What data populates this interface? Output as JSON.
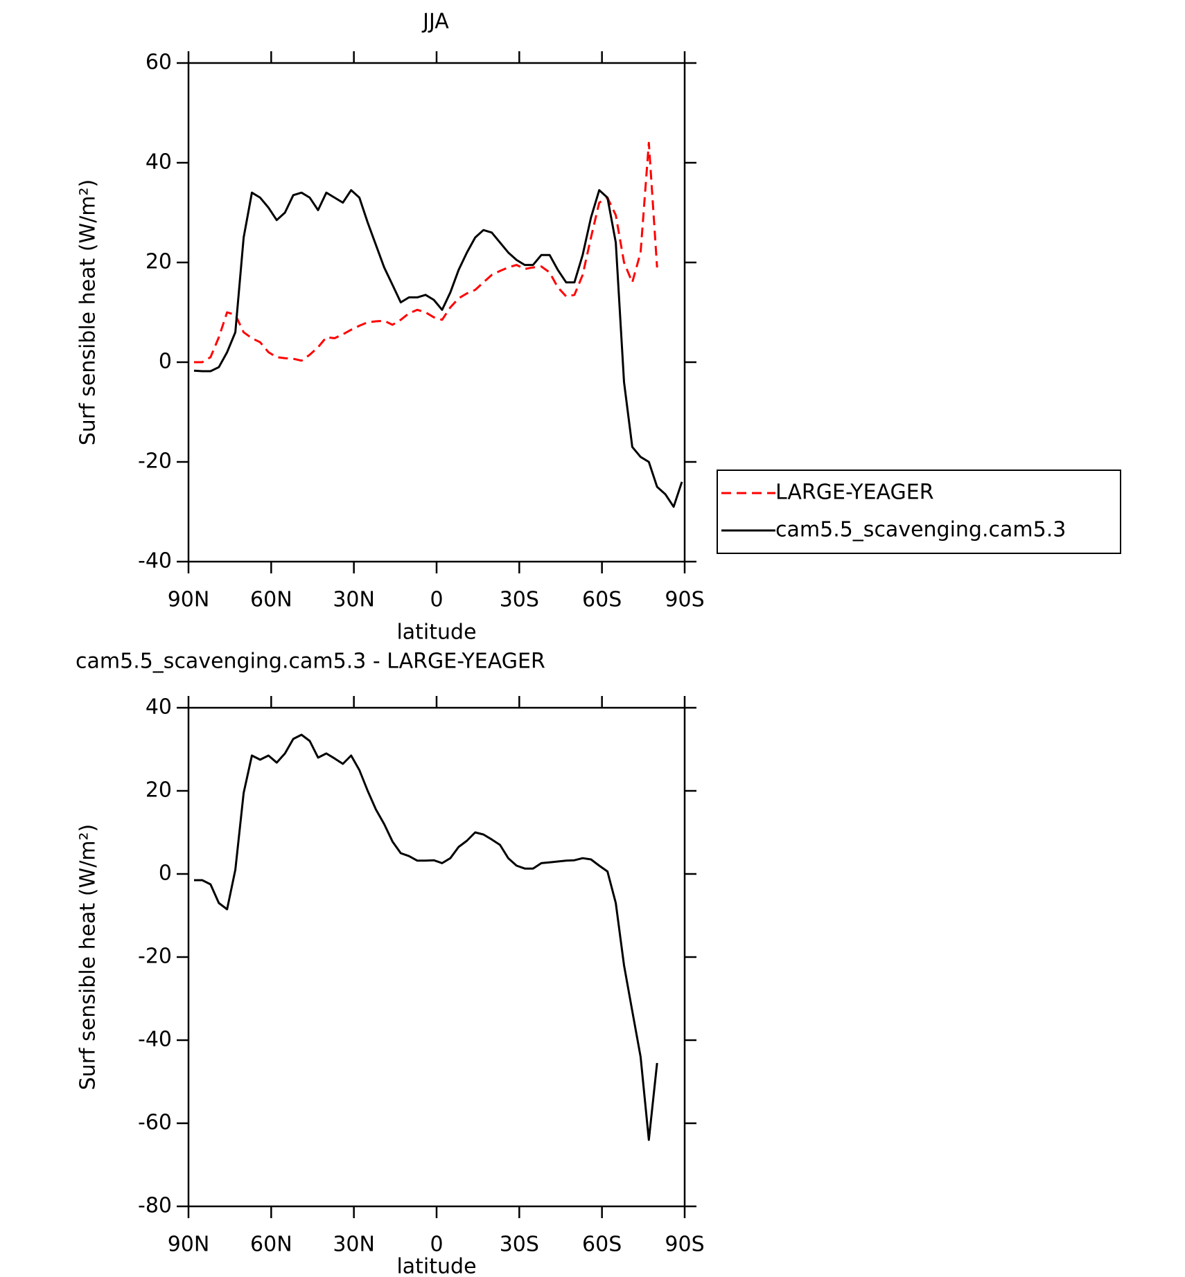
{
  "chart_data": [
    {
      "type": "line",
      "title": "JJA",
      "xlabel": "latitude",
      "ylabel": "Surf sensible heat (W/m²)",
      "x": [
        88,
        85,
        82,
        79,
        76,
        73,
        70,
        67,
        64,
        61,
        58,
        55,
        52,
        49,
        46,
        43,
        40,
        37,
        34,
        31,
        28,
        25,
        22,
        19,
        16,
        13,
        10,
        7,
        4,
        1,
        -2,
        -5,
        -8,
        -11,
        -14,
        -17,
        -20,
        -23,
        -26,
        -29,
        -32,
        -35,
        -38,
        -41,
        -44,
        -47,
        -50,
        -53,
        -56,
        -59,
        -62,
        -65,
        -68,
        -71,
        -74,
        -77,
        -80,
        -83,
        -86,
        -89
      ],
      "series": [
        {
          "name": "LARGE-YEAGER",
          "color": "#ff0000",
          "dashed": true,
          "values": [
            0,
            0,
            1,
            5,
            10,
            9.5,
            6,
            4.8,
            4,
            2,
            1,
            0.8,
            0.7,
            0.3,
            1.5,
            3,
            5,
            4.8,
            5.6,
            6.5,
            7.3,
            8,
            8.2,
            8.3,
            7.5,
            8.5,
            9.8,
            10.5,
            10,
            9,
            8.5,
            11,
            12.8,
            13.8,
            14.5,
            16,
            17.5,
            18.3,
            19,
            19.5,
            18.7,
            19,
            19.2,
            18,
            15,
            13.2,
            13.5,
            17.5,
            25,
            32,
            33,
            29.5,
            20,
            16,
            22,
            44,
            19,
            null,
            null,
            null
          ]
        },
        {
          "name": "cam5.5_scavenging.cam5.3",
          "color": "#000000",
          "dashed": false,
          "values": [
            -1.7,
            -1.8,
            -1.8,
            -1,
            2,
            6,
            25,
            34,
            33,
            31,
            28.5,
            30,
            33.5,
            34,
            33,
            30.5,
            34,
            33,
            32,
            34.5,
            33,
            28,
            23.5,
            19,
            15.5,
            12,
            13,
            13,
            13.5,
            12.5,
            10.5,
            14,
            18.5,
            22,
            25,
            26.5,
            26,
            24,
            22,
            20.5,
            19.5,
            19.5,
            21.5,
            21.5,
            18.5,
            16,
            16,
            21.5,
            29,
            34.5,
            33,
            24,
            -4,
            -17,
            -19,
            -20,
            -25,
            -26.5,
            -29,
            -24
          ]
        }
      ],
      "xlim": [
        90,
        -90
      ],
      "xticks": [
        {
          "value": 90,
          "label": "90N"
        },
        {
          "value": 60,
          "label": "60N"
        },
        {
          "value": 30,
          "label": "30N"
        },
        0,
        {
          "value": -30,
          "label": "30S"
        },
        {
          "value": -60,
          "label": "60S"
        },
        {
          "value": -90,
          "label": "90S"
        }
      ],
      "ylim": [
        -40,
        60
      ],
      "yticks": [
        -40,
        -20,
        0,
        20,
        40,
        60
      ],
      "legend": "right"
    },
    {
      "type": "line",
      "title": "cam5.5_scavenging.cam5.3 - LARGE-YEAGER",
      "xlabel": "latitude",
      "ylabel": "Surf sensible heat (W/m²)",
      "x": [
        88,
        85,
        82,
        79,
        76,
        73,
        70,
        67,
        64,
        61,
        58,
        55,
        52,
        49,
        46,
        43,
        40,
        37,
        34,
        31,
        28,
        25,
        22,
        19,
        16,
        13,
        10,
        7,
        4,
        1,
        -2,
        -5,
        -8,
        -11,
        -14,
        -17,
        -20,
        -23,
        -26,
        -29,
        -32,
        -35,
        -38,
        -41,
        -44,
        -47,
        -50,
        -53,
        -56,
        -59,
        -62,
        -65,
        -68,
        -71,
        -74,
        -77,
        -80,
        -83,
        -86,
        -89
      ],
      "color": "#000000",
      "values": [
        -1.5,
        -1.5,
        -2.5,
        -7,
        -8.5,
        1,
        19.5,
        28.5,
        27.5,
        28.5,
        26.8,
        29,
        32.5,
        33.5,
        32,
        28,
        29,
        27.8,
        26.5,
        28.5,
        25,
        20,
        15.5,
        12,
        7.8,
        5,
        4.3,
        3.2,
        3.2,
        3.3,
        2.6,
        3.8,
        6.5,
        8,
        10,
        9.5,
        8.3,
        7,
        3.8,
        2,
        1.3,
        1.3,
        2.6,
        2.8,
        3,
        3.2,
        3.3,
        3.8,
        3.5,
        2,
        0.6,
        -7,
        -22,
        -33,
        -44,
        -64,
        -45.5,
        null,
        null,
        null
      ],
      "xlim": [
        90,
        -90
      ],
      "xticks": [
        {
          "value": 90,
          "label": "90N"
        },
        {
          "value": 60,
          "label": "60N"
        },
        {
          "value": 30,
          "label": "30N"
        },
        0,
        {
          "value": -30,
          "label": "30S"
        },
        {
          "value": -60,
          "label": "60S"
        },
        {
          "value": -90,
          "label": "90S"
        }
      ],
      "ylim": [
        -80,
        40
      ],
      "yticks": [
        -80,
        -60,
        -40,
        -20,
        0,
        20,
        40
      ]
    }
  ]
}
